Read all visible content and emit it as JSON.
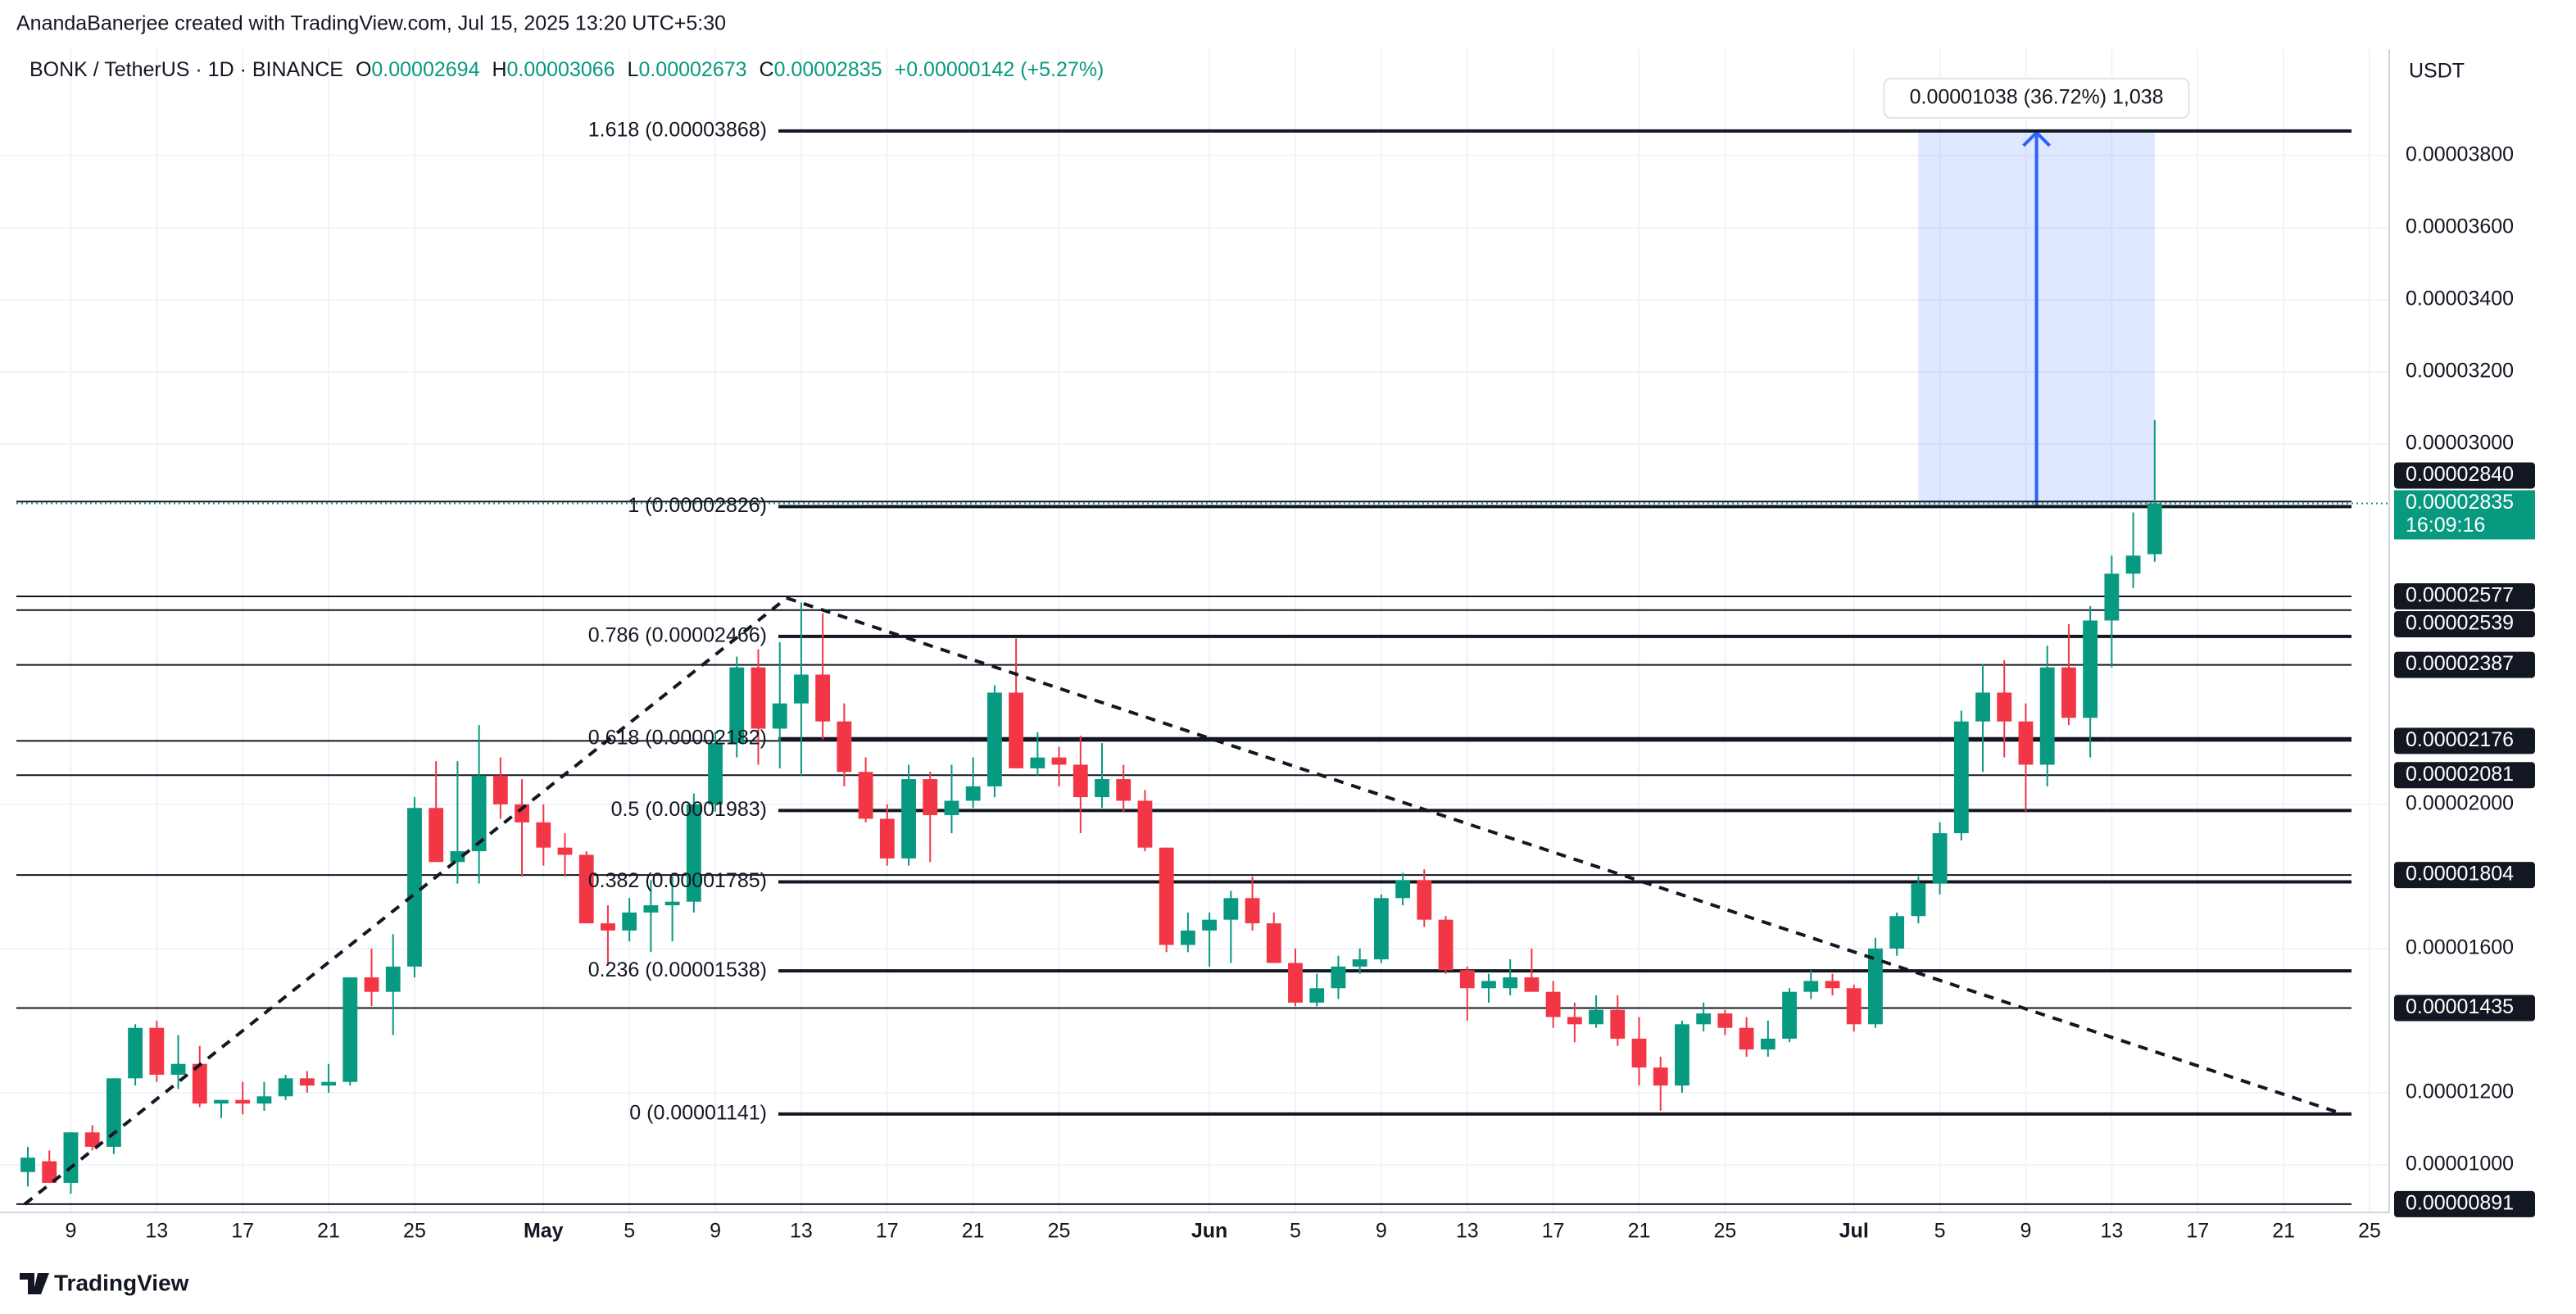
{
  "header": {
    "author_line": "AnandaBanerjee created with TradingView.com, Jul 15, 2025 13:20 UTC+5:30",
    "symbol": "BONK / TetherUS · 1D · BINANCE",
    "ohlc": [
      {
        "label": "O",
        "value": "0.00002694"
      },
      {
        "label": "H",
        "value": "0.00003066"
      },
      {
        "label": "L",
        "value": "0.00002673"
      },
      {
        "label": "C",
        "value": "0.00002835"
      }
    ],
    "change": "+0.00000142 (+5.27%)"
  },
  "chart_data": {
    "type": "candlestick",
    "y_axis_title": "USDT",
    "up_color": "#089981",
    "down_color": "#f23645",
    "grid": true,
    "categories": [
      null,
      null,
      "9",
      null,
      null,
      null,
      "13",
      null,
      null,
      null,
      "17",
      null,
      null,
      null,
      "21",
      null,
      null,
      null,
      "25",
      null,
      null,
      null,
      null,
      null,
      "May",
      null,
      null,
      null,
      "5",
      null,
      null,
      null,
      "9",
      null,
      null,
      null,
      "13",
      null,
      null,
      null,
      "17",
      null,
      null,
      null,
      "21",
      null,
      null,
      null,
      "25",
      null,
      null,
      null,
      null,
      null,
      null,
      "Jun",
      null,
      null,
      null,
      "5",
      null,
      null,
      null,
      "9",
      null,
      null,
      null,
      "13",
      null,
      null,
      null,
      "17",
      null,
      null,
      null,
      "21",
      null,
      null,
      null,
      "25",
      null,
      null,
      null,
      null,
      null,
      "Jul",
      null,
      null,
      null,
      "5",
      null,
      null,
      null,
      "9",
      null,
      null,
      null,
      "13",
      null,
      null,
      null,
      "17",
      null,
      null,
      null,
      "21",
      null,
      null,
      null,
      "25"
    ],
    "open": [
      9.8e-06,
      1.01e-05,
      9.5e-06,
      1.09e-05,
      1.05e-05,
      1.24e-05,
      1.38e-05,
      1.25e-05,
      1.28e-05,
      1.17e-05,
      1.18e-05,
      1.17e-05,
      1.19e-05,
      1.24e-05,
      1.22e-05,
      1.23e-05,
      1.52e-05,
      1.48e-05,
      1.55e-05,
      1.99e-05,
      1.84e-05,
      1.87e-05,
      2.08e-05,
      2e-05,
      1.95e-05,
      1.88e-05,
      1.86e-05,
      1.67e-05,
      1.65e-05,
      1.7e-05,
      1.72e-05,
      1.73e-05,
      2e-05,
      2.17e-05,
      2.38e-05,
      2.21e-05,
      2.28e-05,
      2.36e-05,
      2.23e-05,
      2.09e-05,
      1.96e-05,
      1.85e-05,
      2.07e-05,
      1.97e-05,
      2.01e-05,
      2.05e-05,
      2.31e-05,
      2.1e-05,
      2.13e-05,
      2.11e-05,
      2.02e-05,
      2.07e-05,
      2.01e-05,
      1.88e-05,
      1.61e-05,
      1.65e-05,
      1.68e-05,
      1.74e-05,
      1.67e-05,
      1.56e-05,
      1.45e-05,
      1.49e-05,
      1.55e-05,
      1.57e-05,
      1.74e-05,
      1.79e-05,
      1.68e-05,
      1.54e-05,
      1.49e-05,
      1.49e-05,
      1.52e-05,
      1.48e-05,
      1.41e-05,
      1.39e-05,
      1.43e-05,
      1.35e-05,
      1.27e-05,
      1.22e-05,
      1.39e-05,
      1.42e-05,
      1.38e-05,
      1.32e-05,
      1.35e-05,
      1.48e-05,
      1.51e-05,
      1.49e-05,
      1.39e-05,
      1.6e-05,
      1.69e-05,
      1.78e-05,
      1.92e-05,
      2.23e-05,
      2.31e-05,
      2.23e-05,
      2.11e-05,
      2.38e-05,
      2.24e-05,
      2.51e-05,
      2.64e-05,
      2.694e-05,
      null,
      null,
      null,
      null,
      null,
      null,
      null,
      null,
      null,
      null
    ],
    "high": [
      1.05e-05,
      1.04e-05,
      1.09e-05,
      1.11e-05,
      1.24e-05,
      1.39e-05,
      1.4e-05,
      1.36e-05,
      1.33e-05,
      1.18e-05,
      1.23e-05,
      1.23e-05,
      1.25e-05,
      1.26e-05,
      1.28e-05,
      1.52e-05,
      1.6e-05,
      1.64e-05,
      2.02e-05,
      2.12e-05,
      2.12e-05,
      2.22e-05,
      2.13e-05,
      2.07e-05,
      2e-05,
      1.92e-05,
      1.87e-05,
      1.72e-05,
      1.74e-05,
      1.79e-05,
      1.8e-05,
      2.03e-05,
      2.2e-05,
      2.41e-05,
      2.43e-05,
      2.45e-05,
      2.56e-05,
      2.53e-05,
      2.28e-05,
      2.13e-05,
      2e-05,
      2.11e-05,
      2.09e-05,
      2.11e-05,
      2.13e-05,
      2.33e-05,
      2.46e-05,
      2.2e-05,
      2.16e-05,
      2.19e-05,
      2.17e-05,
      2.11e-05,
      2.04e-05,
      1.88e-05,
      1.7e-05,
      1.7e-05,
      1.76e-05,
      1.8e-05,
      1.7e-05,
      1.6e-05,
      1.53e-05,
      1.58e-05,
      1.6e-05,
      1.75e-05,
      1.81e-05,
      1.82e-05,
      1.69e-05,
      1.55e-05,
      1.53e-05,
      1.57e-05,
      1.6e-05,
      1.51e-05,
      1.45e-05,
      1.47e-05,
      1.47e-05,
      1.41e-05,
      1.3e-05,
      1.4e-05,
      1.45e-05,
      1.43e-05,
      1.41e-05,
      1.4e-05,
      1.49e-05,
      1.54e-05,
      1.53e-05,
      1.5e-05,
      1.63e-05,
      1.7e-05,
      1.8e-05,
      1.95e-05,
      2.26e-05,
      2.39e-05,
      2.4e-05,
      2.28e-05,
      2.44e-05,
      2.5e-05,
      2.55e-05,
      2.69e-05,
      2.81e-05,
      3.066e-05,
      null,
      null,
      null,
      null,
      null,
      null,
      null,
      null,
      null,
      null
    ],
    "low": [
      9.4e-06,
      9.5e-06,
      9.2e-06,
      1.04e-05,
      1.03e-05,
      1.22e-05,
      1.23e-05,
      1.21e-05,
      1.16e-05,
      1.13e-05,
      1.14e-05,
      1.15e-05,
      1.18e-05,
      1.2e-05,
      1.2e-05,
      1.22e-05,
      1.44e-05,
      1.36e-05,
      1.52e-05,
      1.87e-05,
      1.78e-05,
      1.78e-05,
      1.96e-05,
      1.8e-05,
      1.83e-05,
      1.8e-05,
      1.67e-05,
      1.56e-05,
      1.62e-05,
      1.59e-05,
      1.62e-05,
      1.7e-05,
      1.98e-05,
      2.13e-05,
      2.11e-05,
      2.1e-05,
      2.08e-05,
      2.18e-05,
      2.05e-05,
      1.95e-05,
      1.83e-05,
      1.83e-05,
      1.84e-05,
      1.92e-05,
      1.99e-05,
      2.02e-05,
      2.1e-05,
      2.08e-05,
      2.05e-05,
      1.92e-05,
      1.99e-05,
      1.98e-05,
      1.87e-05,
      1.59e-05,
      1.59e-05,
      1.55e-05,
      1.56e-05,
      1.65e-05,
      1.56e-05,
      1.44e-05,
      1.44e-05,
      1.46e-05,
      1.53e-05,
      1.56e-05,
      1.72e-05,
      1.66e-05,
      1.53e-05,
      1.4e-05,
      1.45e-05,
      1.47e-05,
      1.48e-05,
      1.38e-05,
      1.34e-05,
      1.38e-05,
      1.33e-05,
      1.22e-05,
      1.15e-05,
      1.2e-05,
      1.37e-05,
      1.36e-05,
      1.3e-05,
      1.3e-05,
      1.34e-05,
      1.46e-05,
      1.47e-05,
      1.37e-05,
      1.38e-05,
      1.58e-05,
      1.67e-05,
      1.75e-05,
      1.9e-05,
      2.09e-05,
      2.13e-05,
      1.98e-05,
      2.05e-05,
      2.22e-05,
      2.13e-05,
      2.38e-05,
      2.6e-05,
      2.673e-05,
      null,
      null,
      null,
      null,
      null,
      null,
      null,
      null,
      null,
      null
    ],
    "close": [
      1.02e-05,
      9.5e-06,
      1.09e-05,
      1.05e-05,
      1.24e-05,
      1.38e-05,
      1.25e-05,
      1.28e-05,
      1.17e-05,
      1.18e-05,
      1.17e-05,
      1.19e-05,
      1.24e-05,
      1.22e-05,
      1.23e-05,
      1.52e-05,
      1.48e-05,
      1.55e-05,
      1.99e-05,
      1.84e-05,
      1.87e-05,
      2.08e-05,
      2e-05,
      1.95e-05,
      1.88e-05,
      1.86e-05,
      1.67e-05,
      1.65e-05,
      1.7e-05,
      1.72e-05,
      1.73e-05,
      2e-05,
      2.17e-05,
      2.38e-05,
      2.21e-05,
      2.28e-05,
      2.36e-05,
      2.23e-05,
      2.09e-05,
      1.96e-05,
      1.85e-05,
      2.07e-05,
      1.97e-05,
      2.01e-05,
      2.05e-05,
      2.31e-05,
      2.1e-05,
      2.13e-05,
      2.11e-05,
      2.02e-05,
      2.07e-05,
      2.01e-05,
      1.88e-05,
      1.61e-05,
      1.65e-05,
      1.68e-05,
      1.74e-05,
      1.67e-05,
      1.56e-05,
      1.45e-05,
      1.49e-05,
      1.55e-05,
      1.57e-05,
      1.74e-05,
      1.79e-05,
      1.68e-05,
      1.54e-05,
      1.49e-05,
      1.51e-05,
      1.52e-05,
      1.48e-05,
      1.41e-05,
      1.39e-05,
      1.43e-05,
      1.35e-05,
      1.27e-05,
      1.22e-05,
      1.39e-05,
      1.42e-05,
      1.38e-05,
      1.32e-05,
      1.35e-05,
      1.48e-05,
      1.51e-05,
      1.49e-05,
      1.39e-05,
      1.6e-05,
      1.69e-05,
      1.78e-05,
      1.92e-05,
      2.23e-05,
      2.31e-05,
      2.23e-05,
      2.11e-05,
      2.38e-05,
      2.24e-05,
      2.51e-05,
      2.64e-05,
      2.69e-05,
      2.835e-05,
      null,
      null,
      null,
      null,
      null,
      null,
      null,
      null,
      null,
      null
    ],
    "ylim": [
      8.68e-06,
      4.095e-05
    ],
    "yticks": [
      {
        "value": 3.8e-05,
        "label": "0.00003800"
      },
      {
        "value": 3.6e-05,
        "label": "0.00003600"
      },
      {
        "value": 3.4e-05,
        "label": "0.00003400"
      },
      {
        "value": 3.2e-05,
        "label": "0.00003200"
      },
      {
        "value": 3e-05,
        "label": "0.00003000"
      },
      {
        "value": 2e-05,
        "label": "0.00002000"
      },
      {
        "value": 1.6e-05,
        "label": "0.00001600"
      },
      {
        "value": 1.2e-05,
        "label": "0.00001200"
      },
      {
        "value": 1e-05,
        "label": "0.00001000"
      }
    ],
    "price_lines": [
      {
        "value": 2.84e-05,
        "label": "0.00002840"
      },
      {
        "value": 2.577e-05,
        "label": "0.00002577"
      },
      {
        "value": 2.539e-05,
        "label": "0.00002539"
      },
      {
        "value": 2.387e-05,
        "label": "0.00002387"
      },
      {
        "value": 2.176e-05,
        "label": "0.00002176"
      },
      {
        "value": 2.081e-05,
        "label": "0.00002081"
      },
      {
        "value": 1.804e-05,
        "label": "0.00001804"
      },
      {
        "value": 1.435e-05,
        "label": "0.00001435"
      },
      {
        "value": 8.91e-06,
        "label": "0.00000891"
      }
    ],
    "last_price": {
      "value": 2.835e-05,
      "label": "0.00002835",
      "countdown": "16:09:16"
    },
    "fib_levels": [
      {
        "value": 3.868e-05,
        "label": "1.618 (0.00003868)"
      },
      {
        "value": 2.826e-05,
        "label": "1 (0.00002826)"
      },
      {
        "value": 2.466e-05,
        "label": "0.786 (0.00002466)"
      },
      {
        "value": 2.182e-05,
        "label": "0.618 (0.00002182)"
      },
      {
        "value": 1.983e-05,
        "label": "0.5 (0.00001983)"
      },
      {
        "value": 1.785e-05,
        "label": "0.382 (0.00001785)"
      },
      {
        "value": 1.538e-05,
        "label": "0.236 (0.00001538)"
      },
      {
        "value": 1.141e-05,
        "label": "0 (0.00001141)"
      }
    ],
    "measure_label": "0.00001038 (36.72%) 1,038"
  },
  "footer": {
    "brand": "TradingView"
  }
}
